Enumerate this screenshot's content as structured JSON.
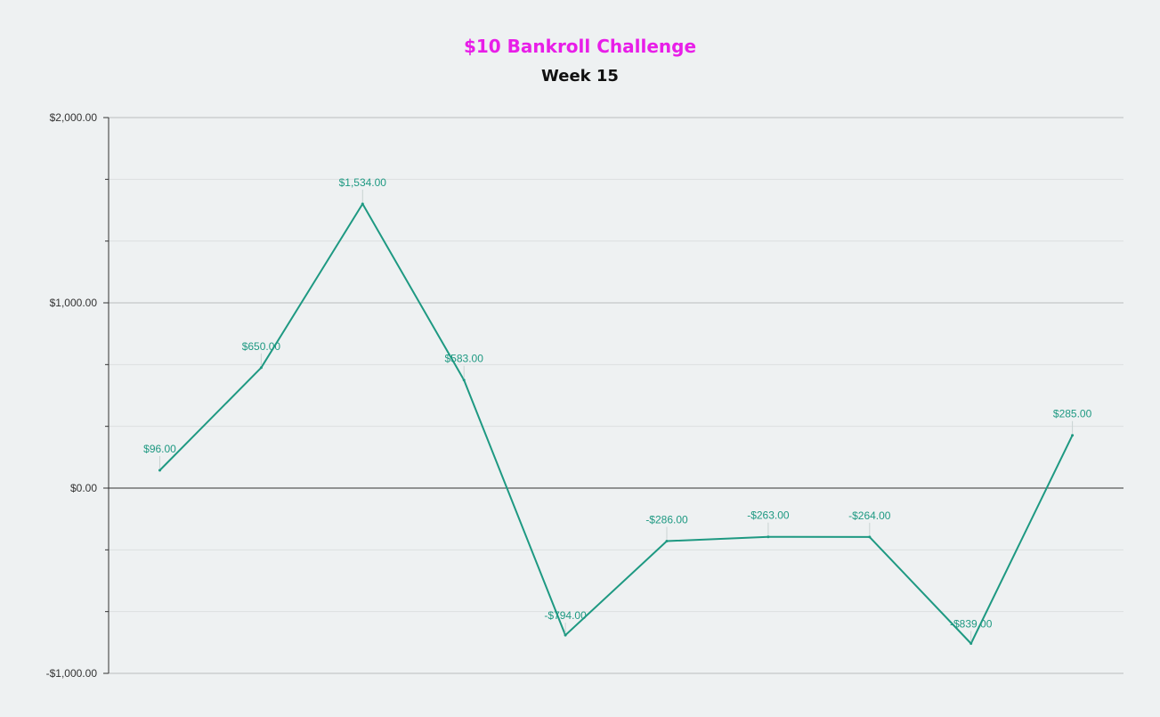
{
  "chart_data": {
    "type": "line",
    "title": "$10 Bankroll Challenge",
    "subtitle": "Week 15",
    "xlabel": "",
    "ylabel": "",
    "ylim": [
      -1000,
      2000
    ],
    "y_ticks": [
      -1000,
      0,
      1000,
      2000
    ],
    "y_tick_labels": [
      "-$1,000.00",
      "$0.00",
      "$1,000.00",
      "$2,000.00"
    ],
    "grid": true,
    "legend": "none",
    "colors": {
      "title": "#e81ee8",
      "line": "#1e9982",
      "grid_major": "#b9bdbe",
      "grid_minor": "#dcdfe0",
      "zero_line": "#333333"
    },
    "series": [
      {
        "values": [
          96,
          650,
          1534,
          583,
          -794,
          -286,
          -263,
          -264,
          -839,
          285
        ],
        "labels": [
          "$96.00",
          "$650.00",
          "$1,534.00",
          "$583.00",
          "-$794.00",
          "-$286.00",
          "-$263.00",
          "-$264.00",
          "-$839.00",
          "$285.00"
        ]
      }
    ]
  }
}
